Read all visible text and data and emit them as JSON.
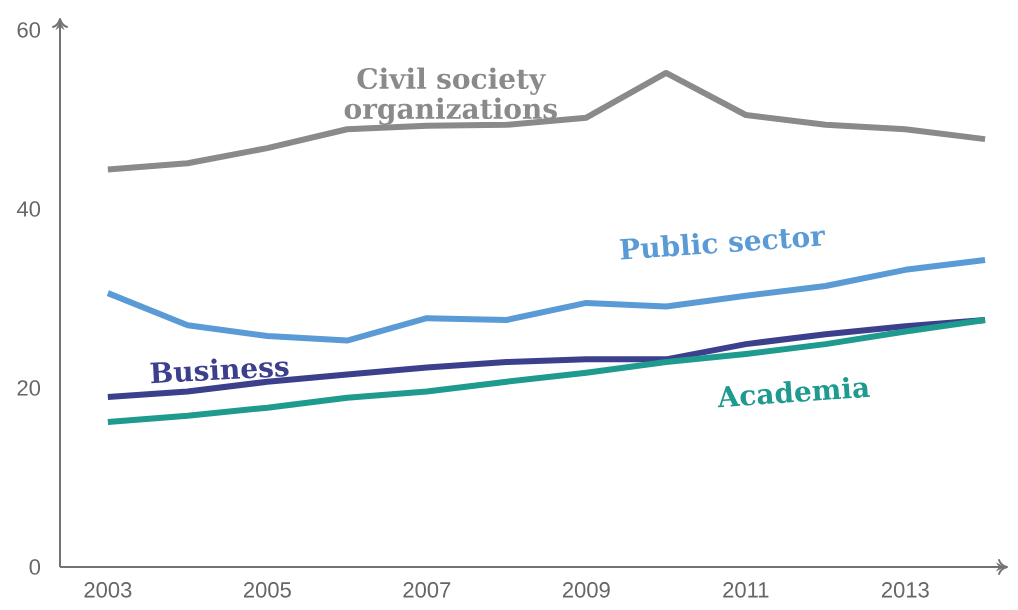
{
  "chart_data": {
    "type": "line",
    "x": [
      2003,
      2004,
      2005,
      2006,
      2007,
      2008,
      2009,
      2010,
      2011,
      2012,
      2013,
      2014
    ],
    "xlim": [
      2002.4,
      2014.25
    ],
    "ylim": [
      0,
      61
    ],
    "xticks": [
      2003,
      2005,
      2007,
      2009,
      2011,
      2013
    ],
    "yticks": [
      0,
      20,
      40,
      60
    ],
    "grid": false,
    "marker": "none",
    "line_style": "solid",
    "series": [
      {
        "name": "Civil society organizations",
        "color": "#8a8a8a",
        "values": [
          44.4,
          45.1,
          46.8,
          48.9,
          49.3,
          49.4,
          50.2,
          55.2,
          50.5,
          49.4,
          48.9,
          47.8
        ]
      },
      {
        "name": "Public sector",
        "color": "#5b9bd5",
        "values": [
          30.6,
          27.0,
          25.8,
          25.3,
          27.8,
          27.6,
          29.5,
          29.1,
          30.3,
          31.4,
          33.2,
          34.3
        ]
      },
      {
        "name": "Business",
        "color": "#3b3f8c",
        "values": [
          19.0,
          19.6,
          20.7,
          21.5,
          22.3,
          22.9,
          23.2,
          23.2,
          24.9,
          26.0,
          26.9,
          27.6
        ]
      },
      {
        "name": "Academia",
        "color": "#1f9a8f",
        "values": [
          16.2,
          16.9,
          17.8,
          18.9,
          19.6,
          20.7,
          21.7,
          22.9,
          23.8,
          24.9,
          26.3,
          27.6
        ]
      }
    ]
  }
}
